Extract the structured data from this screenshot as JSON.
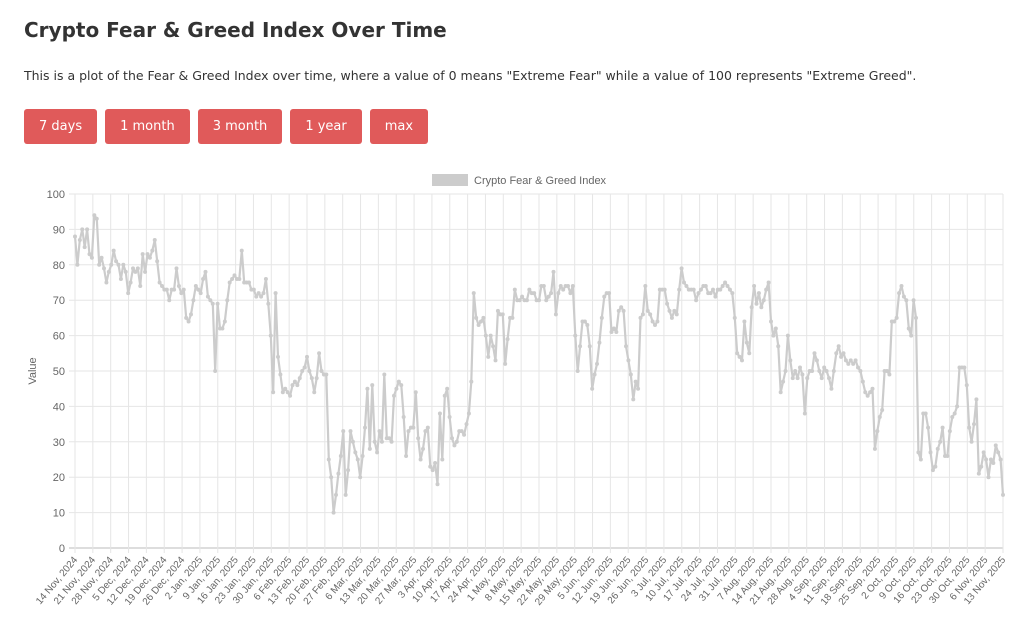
{
  "header": {
    "title": "Crypto Fear & Greed Index Over Time",
    "description": "This is a plot of the Fear & Greed Index over time, where a value of 0 means \"Extreme Fear\" while a value of 100 represents \"Extreme Greed\"."
  },
  "range_buttons": [
    "7 days",
    "1 month",
    "3 month",
    "1 year",
    "max"
  ],
  "colors": {
    "button": "#e05a5a",
    "line": "#cccccc",
    "grid": "#e6e6e6",
    "axis_text": "#666666"
  },
  "chart_data": {
    "type": "line",
    "title": "",
    "xlabel": "",
    "ylabel": "Value",
    "ylim": [
      0,
      100
    ],
    "yticks": [
      0,
      10,
      20,
      30,
      40,
      50,
      60,
      70,
      80,
      90,
      100
    ],
    "grid": true,
    "legend_position": "top-center",
    "x_tick_labels": [
      "14 Nov, 2024",
      "21 Nov, 2024",
      "28 Nov, 2024",
      "5 Dec, 2024",
      "12 Dec, 2024",
      "19 Dec, 2024",
      "26 Dec, 2024",
      "2 Jan, 2025",
      "9 Jan, 2025",
      "16 Jan, 2025",
      "23 Jan, 2025",
      "30 Jan, 2025",
      "6 Feb, 2025",
      "13 Feb, 2025",
      "20 Feb, 2025",
      "27 Feb, 2025",
      "6 Mar, 2025",
      "13 Mar, 2025",
      "20 Mar, 2025",
      "27 Mar, 2025",
      "3 Apr, 2025",
      "10 Apr, 2025",
      "17 Apr, 2025",
      "24 Apr, 2025",
      "1 May, 2025",
      "8 May, 2025",
      "15 May, 2025",
      "22 May, 2025",
      "29 May, 2025",
      "5 Jun, 2025",
      "12 Jun, 2025",
      "19 Jun, 2025",
      "26 Jun, 2025",
      "3 Jul, 2025",
      "10 Jul, 2025",
      "17 Jul, 2025",
      "24 Jul, 2025",
      "31 Jul, 2025",
      "7 Aug, 2025",
      "14 Aug, 2025",
      "21 Aug, 2025",
      "28 Aug, 2025",
      "4 Sep, 2025",
      "11 Sep, 2025",
      "18 Sep, 2025",
      "25 Sep, 2025",
      "2 Oct, 2025",
      "9 Oct, 2025",
      "16 Oct, 2025",
      "23 Oct, 2025",
      "30 Oct, 2025",
      "6 Nov, 2025",
      "13 Nov, 2025"
    ],
    "series": [
      {
        "name": "Crypto Fear & Greed Index",
        "values": [
          88,
          80,
          87,
          90,
          85,
          90,
          83,
          82,
          94,
          93,
          80,
          82,
          79,
          75,
          78,
          80,
          84,
          81,
          80,
          76,
          80,
          78,
          72,
          75,
          79,
          78,
          79,
          74,
          83,
          78,
          83,
          82,
          84,
          87,
          81,
          75,
          74,
          73,
          73,
          70,
          73,
          73,
          79,
          74,
          72,
          73,
          65,
          64,
          66,
          70,
          74,
          73,
          72,
          76,
          78,
          71,
          70,
          69,
          50,
          69,
          62,
          62,
          64,
          70,
          75,
          76,
          77,
          76,
          76,
          84,
          75,
          75,
          75,
          73,
          73,
          71,
          72,
          71,
          72,
          76,
          69,
          60,
          44,
          72,
          54,
          49,
          44,
          45,
          44,
          43,
          46,
          47,
          46,
          48,
          50,
          51,
          54,
          50,
          48,
          44,
          48,
          55,
          50,
          49,
          49,
          25,
          20,
          10,
          15,
          21,
          26,
          33,
          15,
          22,
          33,
          30,
          27,
          25,
          20,
          26,
          34,
          45,
          28,
          46,
          30,
          27,
          33,
          30,
          49,
          31,
          31,
          30,
          43,
          45,
          47,
          46,
          37,
          26,
          33,
          34,
          34,
          44,
          31,
          25,
          28,
          33,
          34,
          23,
          22,
          24,
          18,
          38,
          25,
          43,
          45,
          37,
          31,
          29,
          30,
          33,
          33,
          32,
          35,
          38,
          47,
          72,
          65,
          63,
          64,
          65,
          60,
          54,
          60,
          57,
          53,
          67,
          66,
          66,
          52,
          59,
          65,
          65,
          73,
          70,
          70,
          71,
          70,
          70,
          73,
          72,
          72,
          70,
          70,
          74,
          74,
          70,
          71,
          72,
          78,
          66,
          72,
          74,
          73,
          74,
          74,
          72,
          74,
          60,
          50,
          57,
          64,
          64,
          63,
          57,
          45,
          49,
          52,
          58,
          65,
          71,
          72,
          72,
          61,
          62,
          61,
          67,
          68,
          67,
          57,
          53,
          49,
          42,
          47,
          45,
          65,
          66,
          74,
          67,
          66,
          64,
          63,
          64,
          73,
          73,
          73,
          69,
          67,
          65,
          67,
          66,
          73,
          79,
          75,
          74,
          73,
          73,
          73,
          70,
          72,
          73,
          74,
          74,
          72,
          72,
          73,
          71,
          73,
          73,
          74,
          75,
          74,
          73,
          72,
          65,
          55,
          54,
          53,
          64,
          58,
          55,
          68,
          74,
          69,
          72,
          68,
          70,
          73,
          75,
          64,
          60,
          62,
          57,
          44,
          47,
          50,
          60,
          53,
          48,
          50,
          48,
          51,
          49,
          38,
          48,
          50,
          50,
          55,
          53,
          50,
          48,
          51,
          50,
          48,
          45,
          50,
          55,
          57,
          54,
          55,
          53,
          52,
          53,
          52,
          53,
          51,
          50,
          47,
          44,
          43,
          44,
          45,
          28,
          33,
          37,
          39,
          50,
          50,
          49,
          64,
          64,
          65,
          72,
          74,
          71,
          70,
          62,
          60,
          70,
          65,
          27,
          25,
          38,
          38,
          34,
          27,
          22,
          23,
          28,
          30,
          34,
          26,
          26,
          33,
          37,
          38,
          40,
          51,
          51,
          51,
          46,
          34,
          30,
          35,
          42,
          21,
          23,
          27,
          25,
          20,
          25,
          24,
          29,
          27,
          25,
          15
        ]
      }
    ]
  }
}
